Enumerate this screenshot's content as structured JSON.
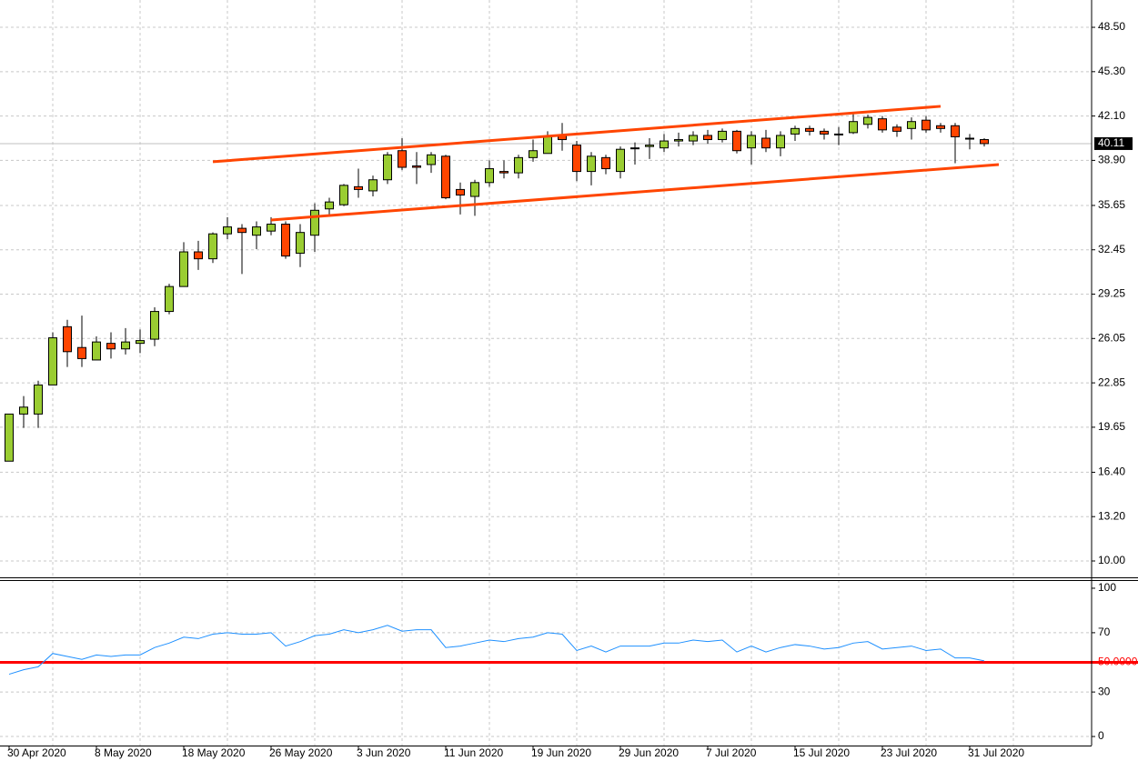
{
  "chart_data": [
    {
      "type": "candlestick",
      "categories": [
        "30 Apr 2020",
        null,
        null,
        null,
        null,
        null,
        "8 May 2020",
        null,
        null,
        null,
        null,
        null,
        "18 May 2020",
        null,
        null,
        null,
        null,
        null,
        "26 May 2020",
        null,
        null,
        null,
        null,
        null,
        "3 Jun 2020",
        null,
        null,
        null,
        null,
        null,
        "11 Jun 2020",
        null,
        null,
        null,
        null,
        null,
        "19 Jun 2020",
        null,
        null,
        null,
        null,
        null,
        "29 Jun 2020",
        null,
        null,
        null,
        null,
        null,
        "7 Jul 2020",
        null,
        null,
        null,
        null,
        null,
        "15 Jul 2020",
        null,
        null,
        null,
        null,
        null,
        "23 Jul 2020",
        null,
        null,
        null,
        null,
        null,
        "31 Jul 2020",
        null
      ],
      "open": [
        17.2,
        20.6,
        20.6,
        22.7,
        26.9,
        25.4,
        24.5,
        25.7,
        25.3,
        25.7,
        26.0,
        28.0,
        29.8,
        32.3,
        31.8,
        33.6,
        34.0,
        33.5,
        33.8,
        34.3,
        32.2,
        33.5,
        35.4,
        35.7,
        37.0,
        36.7,
        37.5,
        39.6,
        38.5,
        38.6,
        39.2,
        36.8,
        36.3,
        37.3,
        38.1,
        38.0,
        39.1,
        39.4,
        40.7,
        40.0,
        38.1,
        39.1,
        38.1,
        39.8,
        39.9,
        39.8,
        40.3,
        40.3,
        40.7,
        40.4,
        41.0,
        39.8,
        40.5,
        39.8,
        40.8,
        41.2,
        41.0,
        40.8,
        40.9,
        41.5,
        41.9,
        41.3,
        41.2,
        41.8,
        41.4,
        41.4,
        40.5,
        40.4
      ],
      "high": [
        20.6,
        21.9,
        23.0,
        26.5,
        27.4,
        27.7,
        26.2,
        26.5,
        26.8,
        26.7,
        28.3,
        30.0,
        33.0,
        33.1,
        33.7,
        34.8,
        34.3,
        34.5,
        34.8,
        34.5,
        34.3,
        35.8,
        36.2,
        37.2,
        38.3,
        37.8,
        39.5,
        40.5,
        39.5,
        39.5,
        39.3,
        37.3,
        37.5,
        38.9,
        38.9,
        39.3,
        40.4,
        41.0,
        41.6,
        40.3,
        39.5,
        39.3,
        39.9,
        40.2,
        40.5,
        40.8,
        40.9,
        41.0,
        41.1,
        41.2,
        41.1,
        41.0,
        41.1,
        41.0,
        41.4,
        41.4,
        41.2,
        41.3,
        42.3,
        42.2,
        42.1,
        41.5,
        42.0,
        42.1,
        41.6,
        41.6,
        40.8,
        40.5
      ],
      "low": [
        17.2,
        19.6,
        19.6,
        22.7,
        24.0,
        24.0,
        24.5,
        24.6,
        24.9,
        25.0,
        25.5,
        27.8,
        29.8,
        31.0,
        31.5,
        33.2,
        30.7,
        32.5,
        33.5,
        31.8,
        31.2,
        32.3,
        35.0,
        35.6,
        36.2,
        36.3,
        37.2,
        38.2,
        37.2,
        38.0,
        36.1,
        35.0,
        34.9,
        37.0,
        37.6,
        37.6,
        38.8,
        39.4,
        39.6,
        37.4,
        37.1,
        37.9,
        37.6,
        38.6,
        39.0,
        39.5,
        39.9,
        40.0,
        40.1,
        40.2,
        39.4,
        38.6,
        39.5,
        39.2,
        40.3,
        40.7,
        40.4,
        40.0,
        40.8,
        41.2,
        40.9,
        40.6,
        40.4,
        40.9,
        40.9,
        38.7,
        39.7,
        39.9
      ],
      "close": [
        20.6,
        21.1,
        22.7,
        26.1,
        25.1,
        24.6,
        25.8,
        25.3,
        25.8,
        25.9,
        28.0,
        29.8,
        32.3,
        31.8,
        33.6,
        34.1,
        33.7,
        34.1,
        34.3,
        32.0,
        33.7,
        35.3,
        35.9,
        37.1,
        36.8,
        37.5,
        39.3,
        38.4,
        38.4,
        39.3,
        36.2,
        36.4,
        37.3,
        38.3,
        38.0,
        39.1,
        39.6,
        40.6,
        40.4,
        38.1,
        39.2,
        38.3,
        39.7,
        39.8,
        40.0,
        40.3,
        40.4,
        40.7,
        40.4,
        41.0,
        39.6,
        40.7,
        39.8,
        40.7,
        41.2,
        41.0,
        40.8,
        40.8,
        41.7,
        42.0,
        41.1,
        41.0,
        41.7,
        41.1,
        41.2,
        40.6,
        40.5,
        40.11
      ],
      "up_color": "#9acd32",
      "down_color": "#ff4500",
      "ylim": [
        8.82,
        50.47
      ],
      "yticks": [
        {
          "value": 10,
          "label": "10.00"
        },
        {
          "value": 13.2,
          "label": "13.20"
        },
        {
          "value": 16.4,
          "label": "16.40"
        },
        {
          "value": 19.65,
          "label": "19.65"
        },
        {
          "value": 22.85,
          "label": "22.85"
        },
        {
          "value": 26.05,
          "label": "26.05"
        },
        {
          "value": 29.25,
          "label": "29.25"
        },
        {
          "value": 32.45,
          "label": "32.45"
        },
        {
          "value": 35.65,
          "label": "35.65"
        },
        {
          "value": 38.9,
          "label": "38.90"
        },
        {
          "value": 42.1,
          "label": "42.10"
        },
        {
          "value": 45.3,
          "label": "45.30"
        },
        {
          "value": 48.5,
          "label": "48.50"
        }
      ],
      "current_price": 40.11,
      "trendlines": [
        {
          "start_index": 14,
          "start": 38.8,
          "end_index": 64,
          "end": 42.8,
          "color": "#ff4500"
        },
        {
          "start_index": 18,
          "start": 34.6,
          "end_index": 68,
          "end": 38.6,
          "color": "#ff4500"
        }
      ],
      "grid": true
    },
    {
      "type": "line",
      "series": [
        {
          "color": "#1e90ff",
          "values": [
            42,
            45,
            47,
            56,
            54,
            52,
            55,
            54,
            55,
            55,
            60,
            63,
            67,
            66,
            69,
            70,
            69,
            69,
            70,
            61,
            64,
            68,
            69,
            72,
            70,
            72,
            75,
            71,
            72,
            72,
            60,
            61,
            63,
            65,
            64,
            66,
            67,
            70,
            69,
            58,
            61,
            57,
            61,
            61,
            61,
            63,
            63,
            65,
            64,
            65,
            57,
            61,
            57,
            60,
            62,
            61,
            59,
            60,
            63,
            64,
            59,
            60,
            61,
            58,
            59,
            53,
            53,
            51
          ]
        }
      ],
      "ylim": [
        -6.1,
        105.5
      ],
      "yticks": [
        0,
        30,
        70,
        100
      ],
      "level": {
        "value": 50,
        "label": "50.0000",
        "color": "#ff0000"
      },
      "grid": true
    }
  ]
}
